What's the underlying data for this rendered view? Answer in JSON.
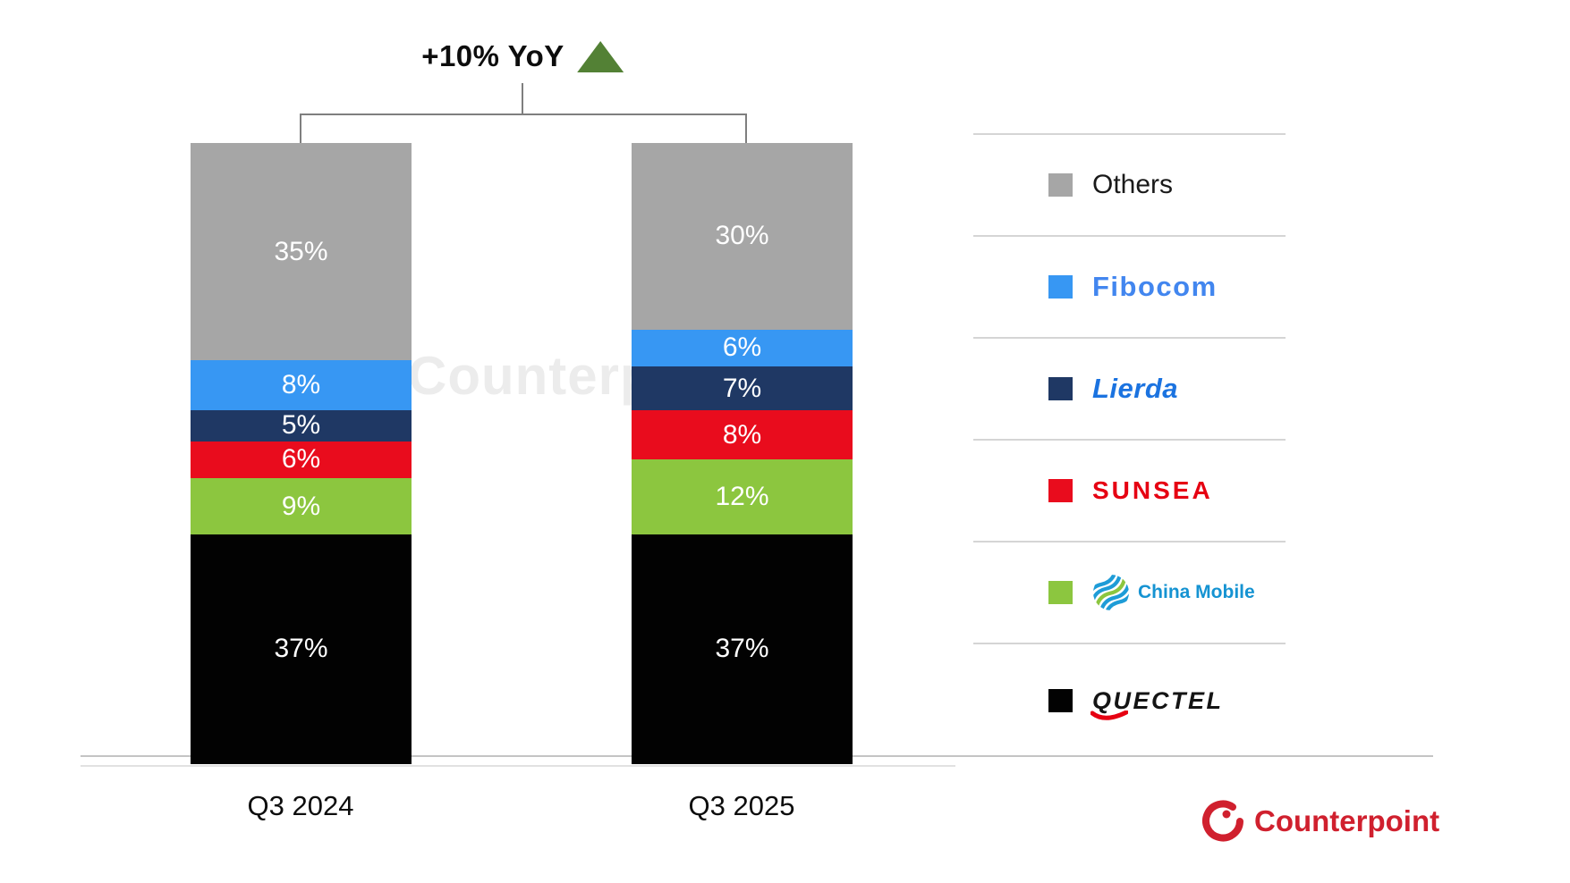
{
  "chart_data": {
    "type": "bar",
    "subtype": "100-percent-stacked-column",
    "categories": [
      "Q3 2024",
      "Q3 2025"
    ],
    "unit": "%",
    "ylim": [
      0,
      100
    ],
    "value_labels": true,
    "legend_position": "right",
    "stack_order_top_to_bottom": [
      "Others",
      "Fibocom",
      "Lierda",
      "Sunsea",
      "China Mobile",
      "Quectel"
    ],
    "series": [
      {
        "name": "Others",
        "color": "#a6a6a6",
        "values": [
          35,
          30
        ]
      },
      {
        "name": "Fibocom",
        "color": "#3797f3",
        "values": [
          8,
          6
        ]
      },
      {
        "name": "Lierda",
        "color": "#1f3864",
        "values": [
          5,
          7
        ]
      },
      {
        "name": "Sunsea",
        "color": "#e90c1d",
        "values": [
          6,
          8
        ]
      },
      {
        "name": "China Mobile",
        "color": "#8cc63f",
        "values": [
          9,
          12
        ]
      },
      {
        "name": "Quectel",
        "color": "#020202",
        "values": [
          37,
          37
        ]
      }
    ],
    "annotation": {
      "text": "+10% YoY",
      "direction": "up",
      "triangle_color": "#538135"
    }
  },
  "legend": {
    "items": [
      {
        "label": "Others",
        "color": "#a6a6a6",
        "logo_color": "#1a1a1a"
      },
      {
        "label": "Fibocom",
        "color": "#3797f3",
        "logo_color": "#4286ef"
      },
      {
        "label": "Lierda",
        "color": "#1f3864",
        "logo_color": "#1b73e0"
      },
      {
        "label": "SUNSEA",
        "color": "#e90c1d",
        "logo_color": "#e60012"
      },
      {
        "label": "China Mobile",
        "color": "#8cc63f",
        "logo_color": "#1593d2"
      },
      {
        "label": "QUECTEL",
        "color": "#020202",
        "logo_color": "#141414"
      }
    ]
  },
  "watermark": {
    "text": "Counterpoint"
  },
  "branding": {
    "name": "Counterpoint",
    "color": "#d0202e"
  }
}
